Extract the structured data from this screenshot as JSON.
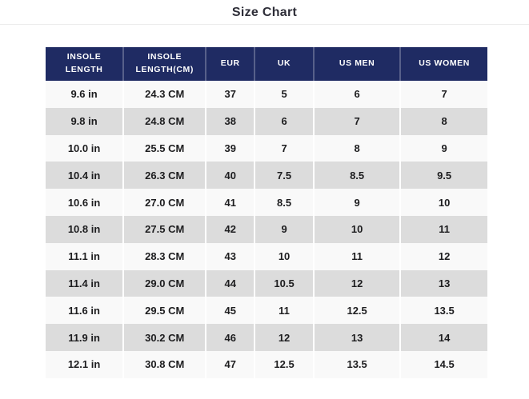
{
  "page": {
    "title": "Size Chart"
  },
  "colors": {
    "header_bg": "#1f2b63",
    "header_text": "#ffffff",
    "row_odd": "#f9f9f9",
    "row_even": "#dcdcdc",
    "body_text": "#1d1d1f",
    "title_text": "#2e2e38",
    "divider": "#ececec"
  },
  "chart_data": {
    "type": "table",
    "title": "Size Chart",
    "columns": [
      "INSOLE LENGTH",
      "INSOLE LENGTH(CM)",
      "EUR",
      "UK",
      "US MEN",
      "US WOMEN"
    ],
    "rows": [
      [
        "9.6 in",
        "24.3 CM",
        "37",
        "5",
        "6",
        "7"
      ],
      [
        "9.8 in",
        "24.8 CM",
        "38",
        "6",
        "7",
        "8"
      ],
      [
        "10.0 in",
        "25.5 CM",
        "39",
        "7",
        "8",
        "9"
      ],
      [
        "10.4 in",
        "26.3 CM",
        "40",
        "7.5",
        "8.5",
        "9.5"
      ],
      [
        "10.6 in",
        "27.0 CM",
        "41",
        "8.5",
        "9",
        "10"
      ],
      [
        "10.8 in",
        "27.5 CM",
        "42",
        "9",
        "10",
        "11"
      ],
      [
        "11.1 in",
        "28.3 CM",
        "43",
        "10",
        "11",
        "12"
      ],
      [
        "11.4 in",
        "29.0 CM",
        "44",
        "10.5",
        "12",
        "13"
      ],
      [
        "11.6 in",
        "29.5 CM",
        "45",
        "11",
        "12.5",
        "13.5"
      ],
      [
        "11.9 in",
        "30.2 CM",
        "46",
        "12",
        "13",
        "14"
      ],
      [
        "12.1 in",
        "30.8 CM",
        "47",
        "12.5",
        "13.5",
        "14.5"
      ]
    ],
    "layout": {
      "legend": "none",
      "grid": "row-stripes",
      "header_position": "top"
    }
  }
}
